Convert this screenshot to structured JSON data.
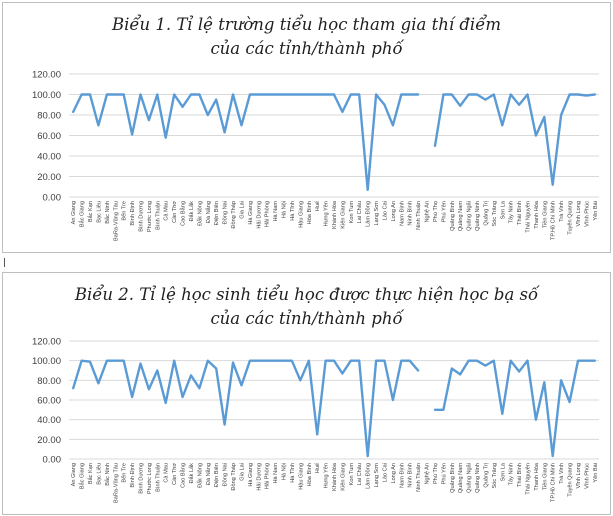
{
  "colors": {
    "line": "#5b9bd5",
    "grid": "#d9d9d9",
    "axis_text": "#404040"
  },
  "chart_data": [
    {
      "type": "line",
      "title_line1": "Biểu 1. Tỉ lệ trường tiểu học tham gia thí điểm",
      "title_line2": "của các tỉnh/thành phố",
      "ylim": [
        0,
        120
      ],
      "yticks": [
        "0.00",
        "20.00",
        "40.00",
        "60.00",
        "80.00",
        "100.00",
        "120.00"
      ],
      "categories": [
        "An Giang",
        "Bắc Giang",
        "Bắc Kạn",
        "Bạc Liêu",
        "Bắc Ninh",
        "BaRa-Vũng Tàu",
        "Bến Tre",
        "Bình Định",
        "Bình Dương",
        "Phước Long",
        "Bình Thuận",
        "Cà Mau",
        "Cần Thơ",
        "Cao Bằng",
        "Đắk Lắk",
        "Đắk Nông",
        "Đà Nẵng",
        "Điện Biên",
        "Đồng Nai",
        "Đồng Tháp",
        "Gia Lai",
        "Hà Giang",
        "Hải Dương",
        "Hải Phòng",
        "Hà Nam",
        "Hà Nội",
        "Hà Tĩnh",
        "Hậu Giang",
        "Hòa Bình",
        "Huế",
        "Hưng Yên",
        "Khánh Hòa",
        "Kiên Giang",
        "Kon Tum",
        "Lai Châu",
        "Lâm Đồng",
        "Lạng Sơn",
        "Lào Cai",
        "Long An",
        "Nam Định",
        "Ninh Bình",
        "Ninh Thuận",
        "Nghệ An",
        "Phú Thọ",
        "Phú Yên",
        "Quảng Bình",
        "Quảng Nam",
        "Quảng Ngãi",
        "Quảng Ninh",
        "Quảng Trị",
        "Sóc Trăng",
        "Sơn La",
        "Tây Ninh",
        "Thái Bình",
        "Thái Nguyên",
        "Thanh Hóa",
        "Tiền Giang",
        "TP.Hồ Chí Minh",
        "Trà Vinh",
        "Tuyên Quang",
        "Vĩnh Long",
        "Vĩnh Phúc",
        "Yên Bái"
      ],
      "series": [
        {
          "name": "Tỉ lệ trường tiểu học tham gia thí điểm",
          "values": [
            83,
            100,
            100,
            70,
            100,
            100,
            100,
            61,
            100,
            75,
            100,
            58,
            100,
            88,
            100,
            100,
            80,
            95,
            63,
            100,
            70,
            100,
            100,
            100,
            100,
            100,
            100,
            100,
            100,
            100,
            100,
            100,
            83,
            100,
            100,
            7,
            100,
            90,
            70,
            100,
            100,
            100,
            null,
            50,
            100,
            100,
            89,
            100,
            100,
            95,
            100,
            70,
            100,
            90,
            100,
            60,
            78,
            12,
            80,
            100,
            100,
            99,
            100
          ]
        }
      ]
    },
    {
      "type": "line",
      "title_line1": "Biểu 2. Tỉ lệ học sinh tiểu học được thực hiện học bạ số",
      "title_line2": "của các tỉnh/thành phố",
      "ylim": [
        0,
        120
      ],
      "yticks": [
        "0.00",
        "20.00",
        "40.00",
        "60.00",
        "80.00",
        "100.00",
        "120.00"
      ],
      "categories": [
        "An Giang",
        "Bắc Giang",
        "Bắc Kạn",
        "Bạc Liêu",
        "Bắc Ninh",
        "BaRa-Vũng Tàu",
        "Bến Tre",
        "Bình Định",
        "Bình Dương",
        "Phước Long",
        "Bình Thuận",
        "Cà Mau",
        "Cần Thơ",
        "Cao Bằng",
        "Đắk Lắk",
        "Đắk Nông",
        "Đà Nẵng",
        "Điện Biên",
        "Đồng Nai",
        "Đồng Tháp",
        "Gia Lai",
        "Hà Giang",
        "Hải Dương",
        "Hải Phòng",
        "Hà Nam",
        "Hà Nội",
        "Hà Tĩnh",
        "Hậu Giang",
        "Hòa Bình",
        "Huế",
        "Hưng Yên",
        "Khánh Hòa",
        "Kiên Giang",
        "Kon Tum",
        "Lai Châu",
        "Lâm Đồng",
        "Lạng Sơn",
        "Lào Cai",
        "Long An",
        "Nam Định",
        "Ninh Bình",
        "Ninh Thuận",
        "Nghệ An",
        "Phú Thọ",
        "Phú Yên",
        "Quảng Bình",
        "Quảng Nam",
        "Quảng Ngãi",
        "Quảng Ninh",
        "Quảng Trị",
        "Sóc Trăng",
        "Sơn La",
        "Tây Ninh",
        "Thái Bình",
        "Thái Nguyên",
        "Thanh Hóa",
        "Tiền Giang",
        "TP.Hồ Chí Minh",
        "Trà Vinh",
        "Tuyên Quang",
        "Vĩnh Long",
        "Vĩnh Phúc",
        "Yên Bái"
      ],
      "series": [
        {
          "name": "Tỉ lệ học sinh tiểu học được thực hiện học bạ số",
          "values": [
            72,
            100,
            99,
            77,
            100,
            100,
            100,
            63,
            97,
            71,
            90,
            57,
            100,
            63,
            85,
            72,
            100,
            92,
            35,
            98,
            75,
            100,
            100,
            100,
            100,
            100,
            100,
            80,
            100,
            25,
            100,
            100,
            87,
            100,
            100,
            3,
            100,
            100,
            60,
            100,
            100,
            90,
            null,
            50,
            50,
            92,
            86,
            100,
            100,
            95,
            100,
            46,
            100,
            89,
            100,
            40,
            78,
            3,
            80,
            58,
            100,
            100,
            100
          ]
        }
      ]
    }
  ]
}
